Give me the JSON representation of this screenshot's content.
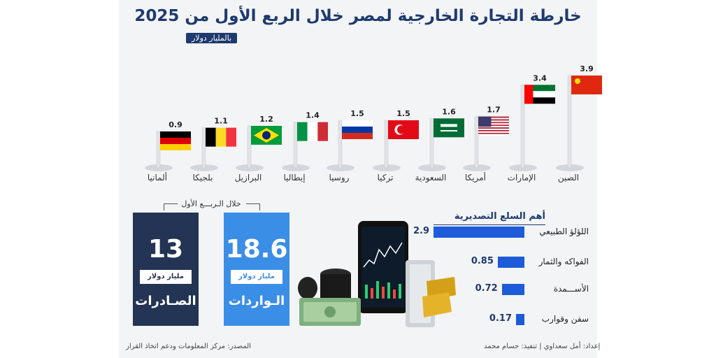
{
  "title": "خارطة التجارة الخارجية لمصر خلال الربع الأول من 2025",
  "unit": "بالمليار دولار",
  "chart_data": [
    {
      "type": "bar",
      "categories": [
        "الصين",
        "الإمارات",
        "أمريكا",
        "السعودية",
        "تركيا",
        "روسيا",
        "إيطاليا",
        "البرازيل",
        "بلجيكا",
        "ألمانيا"
      ],
      "values": [
        3.9,
        3.4,
        1.7,
        1.6,
        1.5,
        1.5,
        1.4,
        1.2,
        1.1,
        0.9
      ],
      "value_labels": [
        "3.9",
        "3.4",
        "1.7",
        "1.6",
        "1.5",
        "1.5",
        "1.4",
        "1.2",
        "1.1",
        "0.9"
      ]
    },
    {
      "type": "bar",
      "title": "أهم السلع التصديرية",
      "categories": [
        "اللؤلؤ الطبيعي",
        "الفواكه والثمار",
        "الأســـمدة",
        "سفن وقوارب"
      ],
      "values": [
        2.9,
        0.85,
        0.72,
        0.17
      ],
      "value_labels": [
        "2.9",
        "0.85",
        "0.72",
        "0.17"
      ]
    }
  ],
  "quarter_label": "خلال الـربـــع الأول",
  "imports": {
    "value": "18.6",
    "unit": "مليار دولار",
    "label": "الـواردات"
  },
  "exports": {
    "value": "13",
    "unit": "مليار دولار",
    "label": "الصـادرات"
  },
  "footer": {
    "source": "المصدر: مركز المعلومات ودعم اتخاذ القرار",
    "credits": "إعداد: أمل سعداوي | تنفيذ: حسام محمد"
  },
  "colors": {
    "navy": "#1e3a6e",
    "blue": "#3b8ee6",
    "dark": "#233454",
    "bar": "#1e5bd8"
  },
  "flag_icons": [
    "china-flag-icon",
    "uae-flag-icon",
    "usa-flag-icon",
    "saudi-flag-icon",
    "turkey-flag-icon",
    "russia-flag-icon",
    "italy-flag-icon",
    "brazil-flag-icon",
    "belgium-flag-icon",
    "germany-flag-icon"
  ]
}
